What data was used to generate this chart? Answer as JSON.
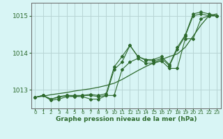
{
  "xlabel": "Graphe pression niveau de la mer (hPa)",
  "x": [
    0,
    1,
    2,
    3,
    4,
    5,
    6,
    7,
    8,
    9,
    10,
    11,
    12,
    13,
    14,
    15,
    16,
    17,
    18,
    19,
    20,
    21,
    22,
    23
  ],
  "y_main": [
    1012.8,
    1012.85,
    1012.75,
    1012.8,
    1012.85,
    1012.82,
    1012.85,
    1012.85,
    1012.82,
    1012.85,
    1013.55,
    1013.75,
    1014.2,
    1013.9,
    1013.8,
    1013.78,
    1013.85,
    1013.65,
    1014.1,
    1014.45,
    1015.0,
    1015.05,
    1015.0,
    1015.0
  ],
  "y_low": [
    1012.8,
    1012.85,
    1012.72,
    1012.75,
    1012.82,
    1012.82,
    1012.82,
    1012.75,
    1012.75,
    1012.85,
    1012.85,
    1013.55,
    1013.75,
    1013.85,
    1013.72,
    1013.72,
    1013.78,
    1013.58,
    1013.58,
    1014.38,
    1014.38,
    1014.92,
    1015.0,
    1015.0
  ],
  "y_high": [
    1012.8,
    1012.85,
    1012.75,
    1012.82,
    1012.85,
    1012.85,
    1012.85,
    1012.88,
    1012.85,
    1012.9,
    1013.62,
    1013.9,
    1014.2,
    1013.9,
    1013.82,
    1013.82,
    1013.9,
    1013.68,
    1014.15,
    1014.48,
    1015.05,
    1015.1,
    1015.05,
    1015.0
  ],
  "y_trend": [
    1012.8,
    1012.83,
    1012.87,
    1012.9,
    1012.93,
    1012.97,
    1013.0,
    1013.03,
    1013.07,
    1013.12,
    1013.18,
    1013.28,
    1013.4,
    1013.52,
    1013.63,
    1013.73,
    1013.82,
    1013.9,
    1013.97,
    1014.15,
    1014.45,
    1014.75,
    1015.0,
    1015.05
  ],
  "line_color": "#2d6a2d",
  "bg_color": "#d8f5f5",
  "grid_color": "#b8d4d4",
  "ylim_min": 1012.5,
  "ylim_max": 1015.35,
  "yticks": [
    1013,
    1014,
    1015
  ],
  "xticks": [
    0,
    1,
    2,
    3,
    4,
    5,
    6,
    7,
    8,
    9,
    10,
    11,
    12,
    13,
    14,
    15,
    16,
    17,
    18,
    19,
    20,
    21,
    22,
    23
  ],
  "xlabel_fontsize": 6.5,
  "ytick_fontsize": 6.5,
  "xtick_fontsize": 5.2
}
